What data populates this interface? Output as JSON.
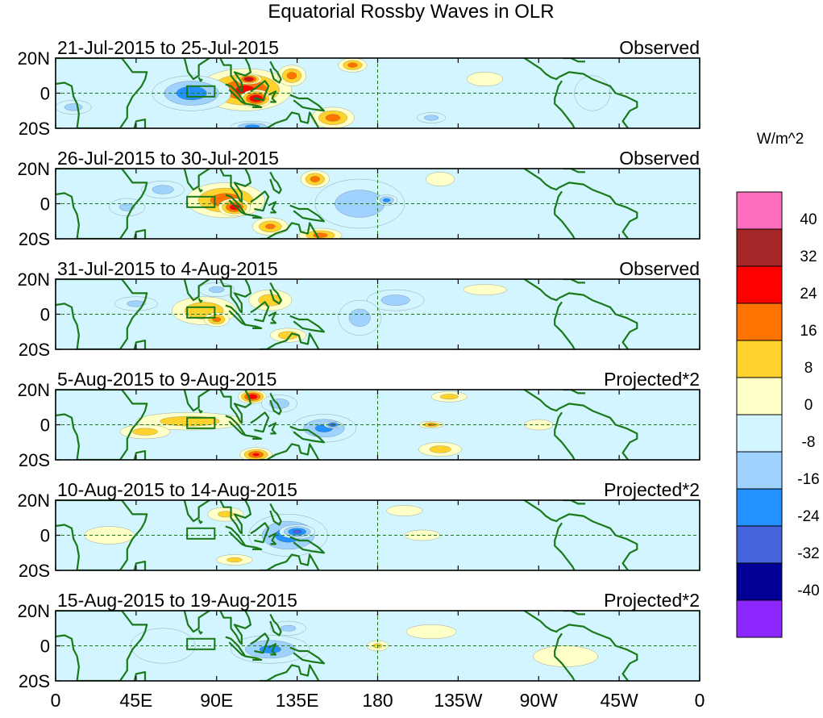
{
  "chart_data": {
    "type": "heatmap",
    "title": "Equatorial Rossby Waves in OLR",
    "units": "W/m^2",
    "lat_range": [
      -20,
      20
    ],
    "lon_range": [
      0,
      360
    ],
    "lat_ticks": [
      "20N",
      "0",
      "20S"
    ],
    "lon_ticks": [
      "0",
      "45E",
      "90E",
      "135E",
      "180",
      "135W",
      "90W",
      "45W",
      "0"
    ],
    "colorbar_levels": [
      "40",
      "32",
      "24",
      "16",
      "8",
      "0",
      "-8",
      "-16",
      "-24",
      "-32",
      "-40"
    ],
    "colorbar_colors": [
      "#ff6ebe",
      "#a52626",
      "#ff0000",
      "#ff7300",
      "#ffd22d",
      "#ffffc8",
      "#d2f5ff",
      "#a0d2ff",
      "#2391ff",
      "#4664dc",
      "#000096",
      "#8c28ff"
    ],
    "panels": [
      {
        "period": "21-Jul-2015 to 25-Jul-2015",
        "label": "Observed",
        "anomalies": [
          {
            "lon": 106,
            "lat": 2,
            "rlon": 26,
            "rlat": 12,
            "value": 24
          },
          {
            "lon": 112,
            "lat": -3,
            "rlon": 9,
            "rlat": 5,
            "value": 34
          },
          {
            "lon": 108,
            "lat": 8,
            "rlon": 7,
            "rlat": 3,
            "value": 34
          },
          {
            "lon": 132,
            "lat": 10,
            "rlon": 8,
            "rlat": 6,
            "value": 18
          },
          {
            "lon": 155,
            "lat": -14,
            "rlon": 12,
            "rlat": 6,
            "value": 18
          },
          {
            "lon": 166,
            "lat": 16,
            "rlon": 8,
            "rlat": 4,
            "value": 18
          },
          {
            "lon": 76,
            "lat": 0,
            "rlon": 22,
            "rlat": 10,
            "value": -20
          },
          {
            "lon": 110,
            "lat": -19,
            "rlon": 12,
            "rlat": 3,
            "value": -18
          },
          {
            "lon": 10,
            "lat": -8,
            "rlon": 10,
            "rlat": 4,
            "value": -10
          },
          {
            "lon": 300,
            "lat": 0,
            "rlon": 10,
            "rlat": 10,
            "value": -4
          },
          {
            "lon": 210,
            "lat": -14,
            "rlon": 8,
            "rlat": 3,
            "value": -10
          },
          {
            "lon": 240,
            "lat": 8,
            "rlon": 10,
            "rlat": 4,
            "value": 5
          }
        ]
      },
      {
        "period": "26-Jul-2015 to 30-Jul-2015",
        "label": "Observed",
        "anomalies": [
          {
            "lon": 95,
            "lat": 2,
            "rlon": 22,
            "rlat": 10,
            "value": 20
          },
          {
            "lon": 100,
            "lat": -2,
            "rlon": 9,
            "rlat": 5,
            "value": 28
          },
          {
            "lon": 120,
            "lat": -13,
            "rlon": 10,
            "rlat": 5,
            "value": 16
          },
          {
            "lon": 145,
            "lat": 14,
            "rlon": 8,
            "rlat": 5,
            "value": 18
          },
          {
            "lon": 148,
            "lat": -18,
            "rlon": 12,
            "rlat": 4,
            "value": 18
          },
          {
            "lon": 170,
            "lat": 0,
            "rlon": 25,
            "rlat": 14,
            "value": -12
          },
          {
            "lon": 185,
            "lat": 2,
            "rlon": 6,
            "rlat": 3,
            "value": -18
          },
          {
            "lon": 60,
            "lat": 8,
            "rlon": 12,
            "rlat": 5,
            "value": -10
          },
          {
            "lon": 40,
            "lat": -2,
            "rlon": 10,
            "rlat": 5,
            "value": -8
          },
          {
            "lon": 215,
            "lat": 14,
            "rlon": 8,
            "rlat": 4,
            "value": 5
          }
        ]
      },
      {
        "period": "31-Jul-2015 to 4-Aug-2015",
        "label": "Observed",
        "anomalies": [
          {
            "lon": 83,
            "lat": 2,
            "rlon": 18,
            "rlat": 8,
            "value": 14
          },
          {
            "lon": 90,
            "lat": -3,
            "rlon": 7,
            "rlat": 4,
            "value": 18
          },
          {
            "lon": 120,
            "lat": 8,
            "rlon": 12,
            "rlat": 6,
            "value": 12
          },
          {
            "lon": 130,
            "lat": -12,
            "rlon": 10,
            "rlat": 4,
            "value": 12
          },
          {
            "lon": 190,
            "lat": 8,
            "rlon": 16,
            "rlat": 6,
            "value": -10
          },
          {
            "lon": 170,
            "lat": -2,
            "rlon": 12,
            "rlat": 10,
            "value": -10
          },
          {
            "lon": 90,
            "lat": 14,
            "rlon": 10,
            "rlat": 4,
            "value": -8
          },
          {
            "lon": 45,
            "lat": 6,
            "rlon": 12,
            "rlat": 4,
            "value": -8
          },
          {
            "lon": 240,
            "lat": 14,
            "rlon": 12,
            "rlat": 3,
            "value": 5
          }
        ]
      },
      {
        "period": "5-Aug-2015 to 9-Aug-2015",
        "label": "Projected*2",
        "anomalies": [
          {
            "lon": 75,
            "lat": 2,
            "rlon": 30,
            "rlat": 5,
            "value": 12
          },
          {
            "lon": 110,
            "lat": 16,
            "rlon": 8,
            "rlat": 4,
            "value": 30
          },
          {
            "lon": 112,
            "lat": -17,
            "rlon": 9,
            "rlat": 4,
            "value": 24
          },
          {
            "lon": 50,
            "lat": -4,
            "rlon": 14,
            "rlat": 4,
            "value": 10
          },
          {
            "lon": 150,
            "lat": -2,
            "rlon": 18,
            "rlat": 8,
            "value": -16
          },
          {
            "lon": 155,
            "lat": 0,
            "rlon": 5,
            "rlat": 2,
            "value": -28
          },
          {
            "lon": 125,
            "lat": 12,
            "rlon": 10,
            "rlat": 5,
            "value": -12
          },
          {
            "lon": 220,
            "lat": 16,
            "rlon": 10,
            "rlat": 3,
            "value": 10
          },
          {
            "lon": 210,
            "lat": 0,
            "rlon": 7,
            "rlat": 2,
            "value": 16
          },
          {
            "lon": 215,
            "lat": -14,
            "rlon": 12,
            "rlat": 4,
            "value": 10
          },
          {
            "lon": 270,
            "lat": 0,
            "rlon": 8,
            "rlat": 3,
            "value": 5
          }
        ]
      },
      {
        "period": "10-Aug-2015 to 14-Aug-2015",
        "label": "Projected*2",
        "anomalies": [
          {
            "lon": 130,
            "lat": 0,
            "rlon": 22,
            "rlat": 12,
            "value": -18
          },
          {
            "lon": 135,
            "lat": 2,
            "rlon": 10,
            "rlat": 4,
            "value": -26
          },
          {
            "lon": 95,
            "lat": 12,
            "rlon": 10,
            "rlat": 4,
            "value": 8
          },
          {
            "lon": 100,
            "lat": -14,
            "rlon": 10,
            "rlat": 3,
            "value": 8
          },
          {
            "lon": 30,
            "lat": 0,
            "rlon": 14,
            "rlat": 5,
            "value": 6
          },
          {
            "lon": 195,
            "lat": 14,
            "rlon": 10,
            "rlat": 3,
            "value": 6
          },
          {
            "lon": 205,
            "lat": 0,
            "rlon": 10,
            "rlat": 3,
            "value": 6
          }
        ]
      },
      {
        "period": "15-Aug-2015 to 19-Aug-2015",
        "label": "Projected*2",
        "anomalies": [
          {
            "lon": 120,
            "lat": -2,
            "rlon": 22,
            "rlat": 8,
            "value": -16
          },
          {
            "lon": 130,
            "lat": 10,
            "rlon": 10,
            "rlat": 4,
            "value": -8
          },
          {
            "lon": 60,
            "lat": 0,
            "rlon": 18,
            "rlat": 10,
            "value": -4
          },
          {
            "lon": 180,
            "lat": 0,
            "rlon": 6,
            "rlat": 3,
            "value": 8
          },
          {
            "lon": 210,
            "lat": 8,
            "rlon": 14,
            "rlat": 4,
            "value": 4
          },
          {
            "lon": 285,
            "lat": -6,
            "rlon": 18,
            "rlat": 6,
            "value": 3
          }
        ]
      }
    ]
  }
}
